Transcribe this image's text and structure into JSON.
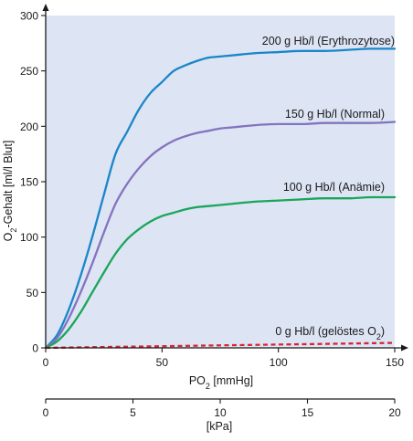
{
  "chart_data": {
    "type": "line",
    "xlabel": "PO₂ [mmHg]",
    "xlabel_main": "PO",
    "xlabel_sub": "2",
    "xlabel_unit": " [mmHg]",
    "ylabel_main": "O",
    "ylabel_sub": "2",
    "ylabel_rest": "-Gehalt  [ml/l Blut]",
    "xlim": [
      0,
      150
    ],
    "ylim": [
      0,
      300
    ],
    "xticks": [
      0,
      50,
      100,
      150
    ],
    "yticks": [
      0,
      50,
      100,
      150,
      200,
      250,
      300
    ],
    "grid": false,
    "background_color": "#dde4f4",
    "secondary_axis": {
      "label": "[kPa]",
      "xlim": [
        0,
        20
      ],
      "ticks": [
        0,
        5,
        10,
        15,
        20
      ]
    },
    "series": [
      {
        "name": "200 g Hb/l (Erythrozytose)",
        "color": "#1a86c8",
        "style": "solid",
        "x": [
          0,
          5,
          10,
          15,
          20,
          25,
          30,
          35,
          40,
          45,
          50,
          55,
          60,
          65,
          70,
          75,
          80,
          90,
          100,
          110,
          120,
          130,
          140,
          150
        ],
        "y": [
          0,
          12,
          35,
          65,
          100,
          138,
          175,
          195,
          215,
          230,
          240,
          250,
          255,
          259,
          262,
          263,
          264,
          266,
          267,
          268,
          268,
          269,
          270,
          270
        ]
      },
      {
        "name": "150 g Hb/l (Normal)",
        "color": "#8473bf",
        "style": "solid",
        "x": [
          0,
          5,
          10,
          15,
          20,
          25,
          30,
          35,
          40,
          45,
          50,
          55,
          60,
          65,
          70,
          75,
          80,
          90,
          100,
          110,
          120,
          130,
          140,
          150
        ],
        "y": [
          0,
          9,
          27,
          50,
          76,
          104,
          130,
          148,
          162,
          173,
          181,
          187,
          191,
          194,
          196,
          198,
          199,
          201,
          202,
          202,
          203,
          203,
          203,
          204
        ]
      },
      {
        "name": "100 g Hb/l (Anämie)",
        "color": "#19a65a",
        "style": "solid",
        "x": [
          0,
          5,
          10,
          15,
          20,
          25,
          30,
          35,
          40,
          45,
          50,
          55,
          60,
          65,
          70,
          75,
          80,
          90,
          100,
          110,
          120,
          130,
          140,
          150
        ],
        "y": [
          0,
          6,
          17,
          32,
          50,
          68,
          85,
          98,
          107,
          114,
          119,
          122,
          125,
          127,
          128,
          129,
          130,
          132,
          133,
          134,
          135,
          135,
          136,
          136
        ]
      },
      {
        "name": "0 g Hb/l (gelöstes O₂)",
        "name_main": "0 g Hb/l (gelöstes O",
        "name_sub": "2",
        "name_end": ")",
        "color": "#d9232e",
        "style": "dashed",
        "x": [
          0,
          150
        ],
        "y": [
          0,
          4.5
        ]
      }
    ]
  }
}
